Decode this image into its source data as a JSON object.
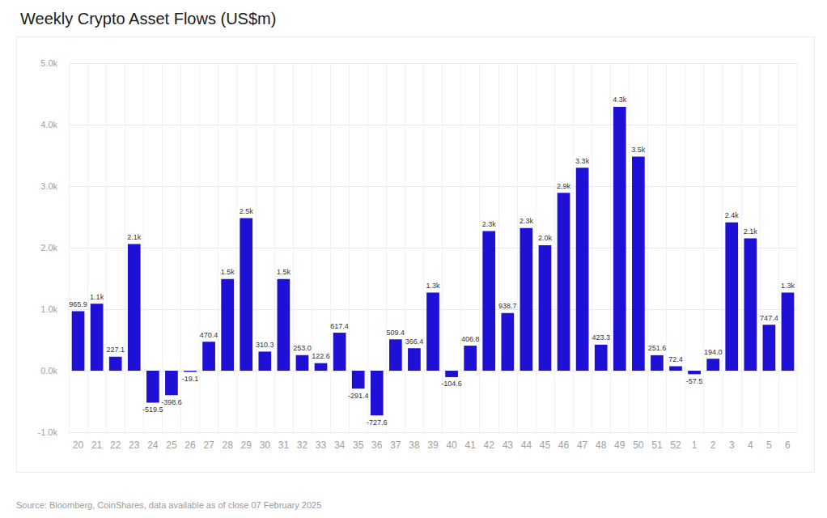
{
  "chart_data": {
    "type": "bar",
    "title": "Weekly Crypto Asset Flows (US$m)",
    "source": "Source: Bloomberg, CoinShares, data available as of close 07 February 2025",
    "categories": [
      "20",
      "21",
      "22",
      "23",
      "24",
      "25",
      "26",
      "27",
      "28",
      "29",
      "30",
      "31",
      "32",
      "33",
      "34",
      "35",
      "36",
      "37",
      "38",
      "39",
      "40",
      "41",
      "42",
      "43",
      "44",
      "45",
      "46",
      "47",
      "48",
      "49",
      "50",
      "51",
      "52",
      "1",
      "2",
      "3",
      "4",
      "5",
      "6"
    ],
    "values": [
      965.9,
      1090,
      227.1,
      2060,
      -519.5,
      -398.6,
      -19.1,
      470.4,
      1490,
      2480,
      310.3,
      1490,
      253.0,
      122.6,
      617.4,
      -291.4,
      -727.6,
      509.4,
      366.4,
      1270,
      -104.6,
      406.8,
      2270,
      938.7,
      2320,
      2040,
      2890,
      3300,
      423.3,
      4290,
      3480,
      251.6,
      72.4,
      -57.5,
      194.0,
      2410,
      2150,
      747.4,
      1270
    ],
    "value_labels": [
      "965.9",
      "1.1k",
      "227.1",
      "2.1k",
      "-519.5",
      "-398.6",
      "-19.1",
      "470.4",
      "1.5k",
      "2.5k",
      "310.3",
      "1.5k",
      "253.0",
      "122.6",
      "617.4",
      "-291.4",
      "-727.6",
      "509.4",
      "366.4",
      "1.3k",
      "-104.6",
      "406.8",
      "2.3k",
      "938.7",
      "2.3k",
      "2.0k",
      "2.9k",
      "3.3k",
      "423.3",
      "4.3k",
      "3.5k",
      "251.6",
      "72.4",
      "-57.5",
      "194.0",
      "2.4k",
      "2.1k",
      "747.4",
      "1.3k"
    ],
    "color": "#1f10d6",
    "ylim": [
      -1000,
      5000
    ],
    "yticks": [
      {
        "value": -1000,
        "label": "-1.0k"
      },
      {
        "value": 0,
        "label": "0.0k"
      },
      {
        "value": 1000,
        "label": "1.0k"
      },
      {
        "value": 2000,
        "label": "2.0k"
      },
      {
        "value": 3000,
        "label": "3.0k"
      },
      {
        "value": 4000,
        "label": "4.0k"
      },
      {
        "value": 5000,
        "label": "5.0k"
      }
    ],
    "grid": true,
    "data_labels": true
  }
}
